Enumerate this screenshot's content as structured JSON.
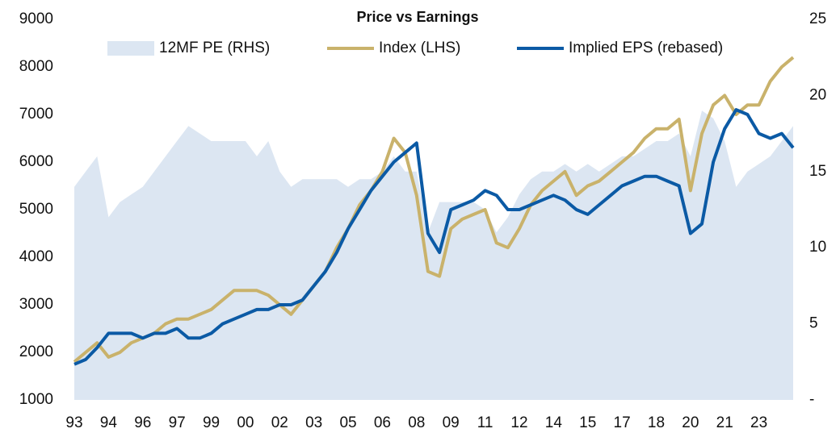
{
  "chart_data": {
    "type": "line",
    "title": "Price vs Earnings",
    "x": [
      1993,
      1993.5,
      1994,
      1994.5,
      1995,
      1995.5,
      1996,
      1996.5,
      1997,
      1997.5,
      1998,
      1998.5,
      1999,
      1999.5,
      2000,
      2000.5,
      2001,
      2001.5,
      2002,
      2002.5,
      2003,
      2003.5,
      2004,
      2004.5,
      2005,
      2005.5,
      2006,
      2006.5,
      2007,
      2007.5,
      2008,
      2008.5,
      2009,
      2009.5,
      2010,
      2010.5,
      2011,
      2011.5,
      2012,
      2012.5,
      2013,
      2013.5,
      2014,
      2014.5,
      2015,
      2015.5,
      2016,
      2016.5,
      2017,
      2017.5,
      2018,
      2018.5,
      2019,
      2019.5,
      2020,
      2020.5,
      2021,
      2021.5,
      2022,
      2022.5,
      2023,
      2023.5,
      2024,
      2024.5
    ],
    "series": [
      {
        "name": "12MF PE (RHS)",
        "type": "area",
        "axis": "y2",
        "color": "#dce6f2",
        "values": [
          14,
          15,
          16,
          12,
          13,
          13.5,
          14,
          15,
          16,
          17,
          18,
          17.5,
          17,
          17,
          17,
          17,
          16,
          17,
          15,
          14,
          14.5,
          14.5,
          14.5,
          14.5,
          14,
          14.5,
          14.5,
          15,
          16,
          15,
          15,
          11,
          13,
          13,
          13,
          13,
          12.5,
          11,
          12,
          13.5,
          14.5,
          15,
          15,
          15.5,
          15,
          15.5,
          15,
          15.5,
          16,
          16,
          16.5,
          17,
          17,
          17.5,
          16,
          19,
          18.5,
          17,
          14,
          15,
          15.5,
          16,
          17,
          18
        ]
      },
      {
        "name": "Index (LHS)",
        "type": "line",
        "axis": "y",
        "color": "#c9b26b",
        "values": [
          1800,
          2000,
          2200,
          1900,
          2000,
          2200,
          2300,
          2400,
          2600,
          2700,
          2700,
          2800,
          2900,
          3100,
          3300,
          3300,
          3300,
          3200,
          3000,
          2800,
          3100,
          3400,
          3700,
          4200,
          4600,
          5100,
          5400,
          5800,
          6500,
          6200,
          5300,
          3700,
          3600,
          4600,
          4800,
          4900,
          5000,
          4300,
          4200,
          4600,
          5100,
          5400,
          5600,
          5800,
          5300,
          5500,
          5600,
          5800,
          6000,
          6200,
          6500,
          6700,
          6700,
          6900,
          5400,
          6600,
          7200,
          7400,
          7000,
          7200,
          7200,
          7700,
          8000,
          8200
        ]
      },
      {
        "name": "Implied EPS (rebased)",
        "type": "line",
        "axis": "y",
        "color": "#0b5aa5",
        "values": [
          1750,
          1850,
          2100,
          2400,
          2400,
          2400,
          2300,
          2400,
          2400,
          2500,
          2300,
          2300,
          2400,
          2600,
          2700,
          2800,
          2900,
          2900,
          3000,
          3000,
          3100,
          3400,
          3700,
          4100,
          4600,
          5000,
          5400,
          5700,
          6000,
          6200,
          6400,
          4500,
          4100,
          5000,
          5100,
          5200,
          5400,
          5300,
          5000,
          5000,
          5100,
          5200,
          5300,
          5200,
          5000,
          4900,
          5100,
          5300,
          5500,
          5600,
          5700,
          5700,
          5600,
          5500,
          4500,
          4700,
          6000,
          6700,
          7100,
          7000,
          6600,
          6500,
          6600,
          6300
        ]
      }
    ],
    "xlim": [
      1993,
      2024.5
    ],
    "xticks": [
      {
        "value": 1993,
        "label": "93"
      },
      {
        "value": 1994.5,
        "label": "94"
      },
      {
        "value": 1996,
        "label": "96"
      },
      {
        "value": 1997.5,
        "label": "97"
      },
      {
        "value": 1999,
        "label": "99"
      },
      {
        "value": 2000.5,
        "label": "00"
      },
      {
        "value": 2002,
        "label": "02"
      },
      {
        "value": 2003.5,
        "label": "03"
      },
      {
        "value": 2005,
        "label": "05"
      },
      {
        "value": 2006.5,
        "label": "06"
      },
      {
        "value": 2008,
        "label": "08"
      },
      {
        "value": 2009.5,
        "label": "09"
      },
      {
        "value": 2011,
        "label": "11"
      },
      {
        "value": 2012.5,
        "label": "12"
      },
      {
        "value": 2014,
        "label": "14"
      },
      {
        "value": 2015.5,
        "label": "15"
      },
      {
        "value": 2017,
        "label": "17"
      },
      {
        "value": 2018.5,
        "label": "18"
      },
      {
        "value": 2020,
        "label": "20"
      },
      {
        "value": 2021.5,
        "label": "21"
      },
      {
        "value": 2023,
        "label": "23"
      }
    ],
    "ylim": [
      1000,
      9000
    ],
    "yticks": [
      1000,
      2000,
      3000,
      4000,
      5000,
      6000,
      7000,
      8000,
      9000
    ],
    "y2lim": [
      0,
      25
    ],
    "y2ticks": [
      {
        "value": 0,
        "label": "-"
      },
      5,
      10,
      15,
      20,
      25
    ]
  }
}
